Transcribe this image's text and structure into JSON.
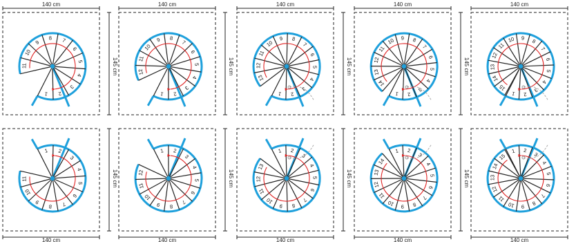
{
  "labels": {
    "width": "140 cm",
    "height": "145 cm"
  },
  "colors": {
    "outer_rail": "#1ea0dc",
    "walkline": "#e02424",
    "steps": "#222222",
    "ghost": "#aaaaaa"
  },
  "variants": [
    {
      "row": "top",
      "steps": 11
    },
    {
      "row": "top",
      "steps": 12
    },
    {
      "row": "top",
      "steps": 13
    },
    {
      "row": "top",
      "steps": 14
    },
    {
      "row": "top",
      "steps": 15
    },
    {
      "row": "bottom",
      "steps": 11
    },
    {
      "row": "bottom",
      "steps": 12
    },
    {
      "row": "bottom",
      "steps": 13
    },
    {
      "row": "bottom",
      "steps": 14
    },
    {
      "row": "bottom",
      "steps": 15
    }
  ]
}
